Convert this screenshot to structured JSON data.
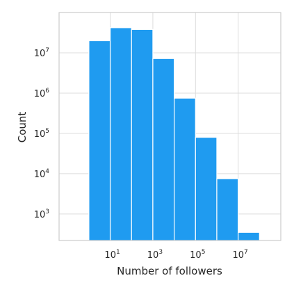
{
  "chart_data": {
    "type": "bar",
    "title": "",
    "xlabel": "Number of followers",
    "ylabel": "Count",
    "x_scale": "log10",
    "y_scale": "log10",
    "x_ticks": [
      {
        "base": "10",
        "exp": "1",
        "value": 10
      },
      {
        "base": "10",
        "exp": "3",
        "value": 1000
      },
      {
        "base": "10",
        "exp": "5",
        "value": 100000
      },
      {
        "base": "10",
        "exp": "7",
        "value": 10000000
      }
    ],
    "y_ticks": [
      {
        "base": "10",
        "exp": "3",
        "value": 1000
      },
      {
        "base": "10",
        "exp": "4",
        "value": 10000
      },
      {
        "base": "10",
        "exp": "5",
        "value": 100000
      },
      {
        "base": "10",
        "exp": "6",
        "value": 1000000
      },
      {
        "base": "10",
        "exp": "7",
        "value": 10000000
      }
    ],
    "xlim": [
      0.04,
      1000000000
    ],
    "ylim": [
      220,
      100000000
    ],
    "bins": [
      {
        "x0": 1,
        "x1": 10,
        "count": 20000000
      },
      {
        "x0": 10,
        "x1": 100,
        "count": 42000000
      },
      {
        "x0": 100,
        "x1": 1000,
        "count": 38000000
      },
      {
        "x0": 1000,
        "x1": 10000,
        "count": 7200000
      },
      {
        "x0": 10000,
        "x1": 100000,
        "count": 750000
      },
      {
        "x0": 100000,
        "x1": 1000000,
        "count": 80000
      },
      {
        "x0": 1000000,
        "x1": 10000000,
        "count": 7500
      },
      {
        "x0": 10000000,
        "x1": 100000000,
        "count": 350
      }
    ],
    "grid": true,
    "colors": {
      "bar": "#1f9bf0"
    }
  }
}
